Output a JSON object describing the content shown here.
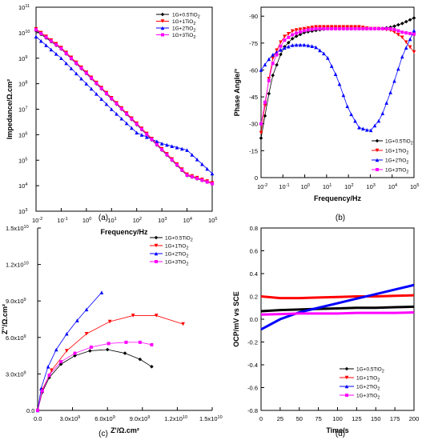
{
  "figure_labels": [
    "(a)",
    "(b)",
    "(c)",
    "(d)"
  ],
  "colors": {
    "black": "#000000",
    "red": "#ff0000",
    "blue": "#0000ff",
    "magenta": "#ff00ff"
  },
  "chart_data": [
    {
      "panel": "(a)",
      "type": "scatter",
      "xlabel": "Frequency/Hz",
      "ylabel": "Impedance/Ω.cm²",
      "xscale": "log",
      "yscale": "log",
      "xlim": [
        0.01,
        100000
      ],
      "ylim": [
        1000,
        100000000000
      ],
      "xtick_exponents": [
        -2,
        -1,
        0,
        1,
        2,
        3,
        4,
        5
      ],
      "ytick_exponents": [
        3,
        4,
        5,
        6,
        7,
        8,
        9,
        10,
        11
      ],
      "legend": "top-right",
      "legend_labels": [
        "1G+0.5TiO2",
        "1G+1TiO2",
        "1G+2TiO2",
        "1G+3TiO2"
      ],
      "x": [
        0.01,
        0.1,
        1,
        10,
        100,
        1000,
        10000,
        100000
      ],
      "series": [
        {
          "name": "1G+0.5TiO2",
          "color": "#000000",
          "marker": "diamond",
          "values": [
            12000000000.0,
            2300000000.0,
            250000000.0,
            25000000.0,
            2500000.0,
            250000.0,
            25000.0,
            12000.0
          ]
        },
        {
          "name": "1G+1TiO2",
          "color": "#ff0000",
          "marker": "triangle-down",
          "values": [
            14000000000.0,
            2600000000.0,
            280000000.0,
            28000000.0,
            2800000.0,
            280000.0,
            28000.0,
            13000.0
          ]
        },
        {
          "name": "1G+2TiO2",
          "color": "#0000ff",
          "marker": "triangle-up",
          "values": [
            7000000000.0,
            1000000000.0,
            100000000.0,
            10000000.0,
            1200000.0,
            450000.0,
            250000.0,
            30000.0
          ]
        },
        {
          "name": "1G+3TiO2",
          "color": "#ff00ff",
          "marker": "square",
          "values": [
            13000000000.0,
            2400000000.0,
            260000000.0,
            26000000.0,
            2600000.0,
            260000.0,
            26000.0,
            12000.0
          ]
        }
      ]
    },
    {
      "panel": "(b)",
      "type": "scatter",
      "xlabel": "Frequency/Hz",
      "ylabel": "Phase Angle/°",
      "xscale": "log",
      "xlim": [
        0.01,
        100000
      ],
      "ylim": [
        0,
        -95
      ],
      "xtick_exponents": [
        -2,
        -1,
        0,
        1,
        2,
        3,
        4,
        5
      ],
      "yticks": [
        0,
        -15,
        -30,
        -45,
        -60,
        -75,
        -90
      ],
      "legend": "bottom-right",
      "legend_labels": [
        "1G+0.5TiO2",
        "1G+1TiO2",
        "1G+2TiO2",
        "1G+3TiO2"
      ],
      "x": [
        0.01,
        0.03,
        0.1,
        0.3,
        1,
        3,
        10,
        30,
        100,
        300,
        1000,
        3000,
        10000,
        30000,
        100000
      ],
      "series": [
        {
          "name": "1G+0.5TiO2",
          "color": "#000000",
          "marker": "diamond",
          "values": [
            -22,
            -55,
            -72,
            -78,
            -81,
            -82,
            -83,
            -83,
            -83,
            -83,
            -83,
            -83,
            -84,
            -86,
            -89
          ]
        },
        {
          "name": "1G+1TiO2",
          "color": "#ff0000",
          "marker": "triangle-down",
          "values": [
            -25,
            -65,
            -78,
            -82,
            -83,
            -84,
            -84,
            -84,
            -84,
            -84,
            -83,
            -83,
            -82,
            -78,
            -70
          ]
        },
        {
          "name": "1G+2TiO2",
          "color": "#0000ff",
          "marker": "triangle-up",
          "values": [
            -60,
            -68,
            -72,
            -74,
            -74,
            -73,
            -68,
            -56,
            -38,
            -28,
            -26,
            -33,
            -50,
            -68,
            -82
          ]
        },
        {
          "name": "1G+3TiO2",
          "color": "#ff00ff",
          "marker": "square",
          "values": [
            -30,
            -62,
            -76,
            -80,
            -82,
            -83,
            -83,
            -83,
            -83,
            -83,
            -83,
            -83,
            -83,
            -81,
            -80
          ]
        }
      ]
    },
    {
      "panel": "(c)",
      "type": "scatter",
      "xlabel": "Z'/Ω.cm²",
      "ylabel": "Z''/Ω.cm²",
      "xlim": [
        0,
        15000000000
      ],
      "ylim": [
        0,
        15000000000
      ],
      "xtick_labels": [
        "0.0",
        "3.0x10",
        "6.0x10",
        "9.0x10",
        "1.2x10",
        "1.5x10"
      ],
      "xtick_exponents": [
        "",
        "9",
        "9",
        "9",
        "10",
        "10"
      ],
      "ytick_labels": [
        "0.0",
        "3.0x10",
        "6.0x10",
        "9.0x10",
        "1.2x10",
        "1.5x10"
      ],
      "ytick_exponents": [
        "",
        "9",
        "9",
        "9",
        "10",
        "10"
      ],
      "legend": "top-right",
      "legend_labels": [
        "1G+0.5TiO2",
        "1G+1TiO2",
        "1G+2TiO2",
        "1G+3TiO2"
      ],
      "series": [
        {
          "name": "1G+0.5TiO2",
          "color": "#000000",
          "marker": "diamond",
          "x": [
            0,
            400000000.0,
            1000000000.0,
            2000000000.0,
            3200000000.0,
            4500000000.0,
            6000000000.0,
            7500000000.0,
            8800000000.0,
            9800000000.0
          ],
          "y": [
            0,
            1500000000.0,
            2700000000.0,
            3800000000.0,
            4500000000.0,
            4900000000.0,
            5000000000.0,
            4700000000.0,
            4200000000.0,
            3600000000.0
          ]
        },
        {
          "name": "1G+1TiO2",
          "color": "#ff0000",
          "marker": "triangle-down",
          "x": [
            0,
            400000000.0,
            1200000000.0,
            2500000000.0,
            4200000000.0,
            6200000000.0,
            8200000000.0,
            10200000000.0,
            12500000000.0
          ],
          "y": [
            0,
            1700000000.0,
            3300000000.0,
            4900000000.0,
            6300000000.0,
            7300000000.0,
            7800000000.0,
            7800000000.0,
            7100000000.0
          ]
        },
        {
          "name": "1G+2TiO2",
          "color": "#0000ff",
          "marker": "triangle-up",
          "x": [
            0,
            300000000.0,
            900000000.0,
            1600000000.0,
            2500000000.0,
            3400000000.0,
            4200000000.0,
            5500000000.0
          ],
          "y": [
            0,
            1800000000.0,
            3600000000.0,
            5000000000.0,
            6300000000.0,
            7400000000.0,
            8300000000.0,
            9700000000.0
          ]
        },
        {
          "name": "1G+3TiO2",
          "color": "#ff00ff",
          "marker": "square",
          "x": [
            0,
            400000000.0,
            1000000000.0,
            2000000000.0,
            3200000000.0,
            4600000000.0,
            6100000000.0,
            7600000000.0,
            8800000000.0,
            9800000000.0
          ],
          "y": [
            0,
            1600000000.0,
            2900000000.0,
            4000000000.0,
            4700000000.0,
            5200000000.0,
            5500000000.0,
            5600000000.0,
            5600000000.0,
            5400000000.0
          ]
        }
      ]
    },
    {
      "panel": "(d)",
      "type": "line",
      "xlabel": "Time/s",
      "ylabel": "OCP/mV vs SCE",
      "xlim": [
        0,
        200
      ],
      "ylim": [
        -0.8,
        0.8
      ],
      "xticks": [
        0,
        25,
        50,
        75,
        100,
        125,
        150,
        175,
        200
      ],
      "yticks": [
        -0.8,
        -0.6,
        -0.4,
        -0.2,
        0.0,
        0.2,
        0.4,
        0.6,
        0.8
      ],
      "ytick_labels": [
        "-0.8",
        "-0.6",
        "-0.4",
        "-0.2",
        "0.0",
        "0.2",
        "0.4",
        "0.6",
        "0.8"
      ],
      "legend": "bottom-right",
      "legend_labels": [
        "1G+0.5TiO2",
        "1G+1TiO2",
        "1G+2TiO2",
        "1G+3TiO2"
      ],
      "x": [
        0,
        25,
        50,
        75,
        100,
        125,
        150,
        175,
        200
      ],
      "series": [
        {
          "name": "1G+0.5TiO2",
          "color": "#000000",
          "values": [
            0.07,
            0.08,
            0.085,
            0.09,
            0.095,
            0.1,
            0.1,
            0.105,
            0.11
          ]
        },
        {
          "name": "1G+1TiO2",
          "color": "#ff0000",
          "values": [
            0.2,
            0.185,
            0.185,
            0.19,
            0.195,
            0.2,
            0.2,
            0.205,
            0.21
          ]
        },
        {
          "name": "1G+2TiO2",
          "color": "#0000ff",
          "values": [
            -0.09,
            0.0,
            0.06,
            0.1,
            0.14,
            0.18,
            0.22,
            0.26,
            0.3
          ]
        },
        {
          "name": "1G+3TiO2",
          "color": "#ff00ff",
          "values": [
            0.04,
            0.045,
            0.05,
            0.05,
            0.05,
            0.055,
            0.055,
            0.055,
            0.06
          ]
        }
      ]
    }
  ]
}
